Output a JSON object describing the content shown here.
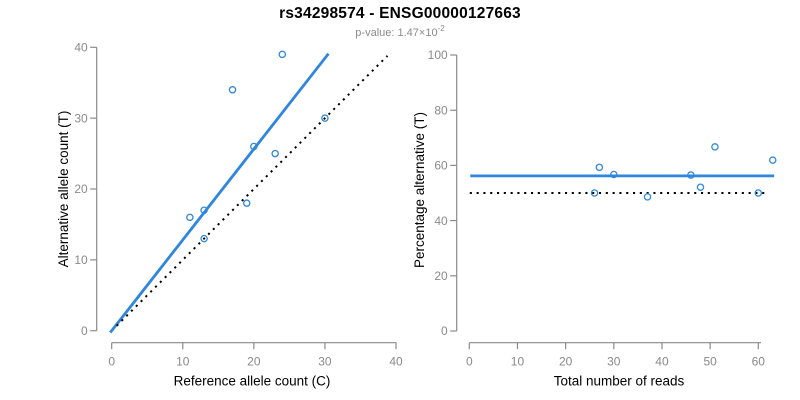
{
  "header": {
    "title": "rs34298574 - ENSG00000127663",
    "pvalue_label": "p-value: 1.47×10",
    "pvalue_exponent": "-2"
  },
  "colors": {
    "accent_blue": "#2E86DE",
    "line_black": "#000000",
    "axis_gray": "#8A8A8A",
    "text_black": "#000000"
  },
  "chart_data": [
    {
      "type": "scatter",
      "panel": "left",
      "xlabel": "Reference allele count (C)",
      "ylabel": "Alternative allele count (T)",
      "xlim": [
        0,
        40
      ],
      "ylim": [
        0,
        40
      ],
      "xticks": [
        0,
        10,
        20,
        30,
        40
      ],
      "yticks": [
        0,
        10,
        20,
        30,
        40
      ],
      "grid": false,
      "marker": "open-circle",
      "points": [
        [
          11,
          16
        ],
        [
          13,
          13
        ],
        [
          13,
          17
        ],
        [
          17,
          34
        ],
        [
          19,
          18
        ],
        [
          20,
          26
        ],
        [
          23,
          25
        ],
        [
          24,
          39
        ],
        [
          30,
          30
        ]
      ],
      "lines": [
        {
          "name": "fitted-allelic-ratio",
          "style": "solid",
          "color": "accent_blue",
          "x": [
            -0.2,
            30.5
          ],
          "y": [
            -0.26,
            39.1
          ]
        },
        {
          "name": "identity",
          "style": "dotted",
          "color": "line_black",
          "x": [
            0.7,
            38.8
          ],
          "y": [
            0.7,
            38.8
          ]
        }
      ]
    },
    {
      "type": "scatter",
      "panel": "right",
      "xlabel": "Total number of reads",
      "ylabel": "Percentage alternative (T)",
      "xlim": [
        0,
        63.5
      ],
      "ylim": [
        0,
        100
      ],
      "xticks": [
        0,
        10,
        20,
        30,
        40,
        50,
        60
      ],
      "yticks": [
        0,
        20,
        40,
        60,
        80,
        100
      ],
      "grid": false,
      "marker": "open-circle",
      "points": [
        [
          26,
          50
        ],
        [
          27,
          59.3
        ],
        [
          30,
          56.7
        ],
        [
          37,
          48.6
        ],
        [
          46,
          56.5
        ],
        [
          48,
          52.1
        ],
        [
          51,
          66.7
        ],
        [
          60,
          50
        ],
        [
          63,
          61.9
        ]
      ],
      "lines": [
        {
          "name": "mean-percentage",
          "style": "solid",
          "color": "accent_blue",
          "x": [
            0.2,
            63.3
          ],
          "y": [
            56.2,
            56.2
          ]
        },
        {
          "name": "fifty-percent",
          "style": "dotted",
          "color": "line_black",
          "x": [
            0.1,
            61.8
          ],
          "y": [
            50,
            50
          ]
        }
      ]
    }
  ]
}
